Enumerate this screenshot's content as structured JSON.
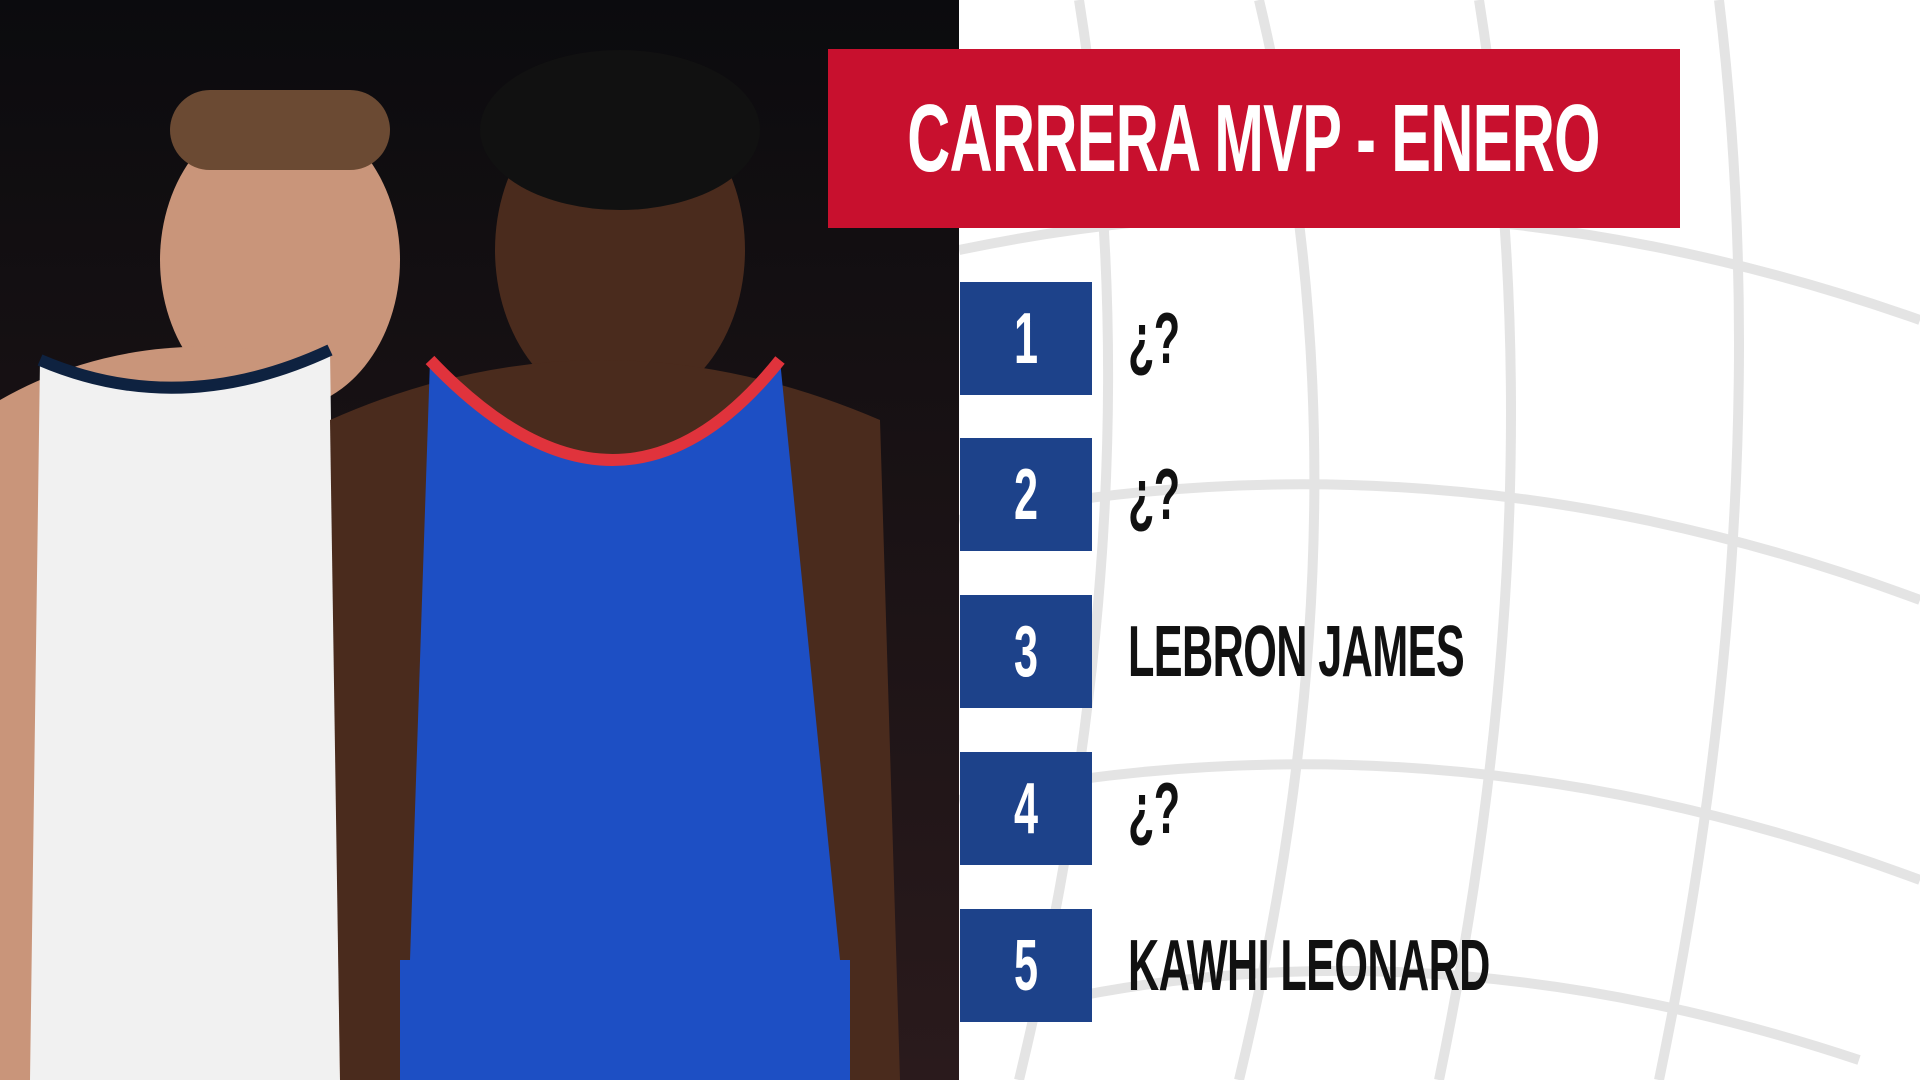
{
  "header": {
    "title": "CARRERA MVP - ENERO"
  },
  "ranking": [
    {
      "rank": 1,
      "name": "¿?"
    },
    {
      "rank": 2,
      "name": "¿?"
    },
    {
      "rank": 3,
      "name": "LEBRON JAMES"
    },
    {
      "rank": 4,
      "name": "¿?"
    },
    {
      "rank": 5,
      "name": "KAWHI LEONARD"
    }
  ]
}
